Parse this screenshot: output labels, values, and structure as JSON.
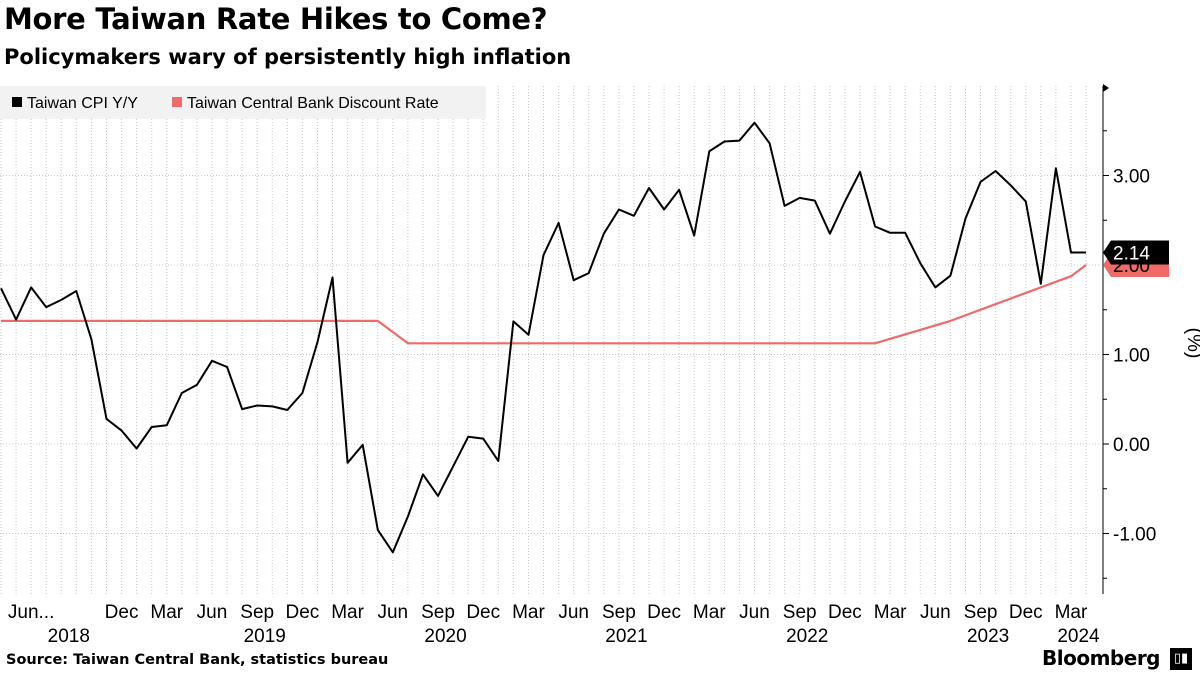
{
  "header": {
    "title": "More Taiwan Rate Hikes to Come?",
    "subtitle": "Policymakers wary of persistently high inflation"
  },
  "footer": {
    "source": "Source: Taiwan Central Bank, statistics bureau",
    "brand": "Bloomberg",
    "brand_icon": "bloomberg-terminal-icon"
  },
  "chart_data": {
    "type": "line",
    "title": "More Taiwan Rate Hikes to Come?",
    "subtitle": "Policymakers wary of persistently high inflation",
    "ylabel": "(%)",
    "ylim": [
      -1.6,
      4.0
    ],
    "yticks": [
      -1.0,
      0.0,
      1.0,
      2.0,
      3.0
    ],
    "ytick_labels": [
      "-1.00",
      "0.00",
      "1.00",
      "2.00",
      "3.00"
    ],
    "x_start": "2018-04",
    "x_months_range": [
      0,
      73
    ],
    "grid": "vertical dotted",
    "legend_position": "top-left",
    "x_ticks": [
      {
        "m": 2,
        "label": "Jun..."
      },
      {
        "m": 8,
        "label": "Dec"
      },
      {
        "m": 11,
        "label": "Mar"
      },
      {
        "m": 14,
        "label": "Jun"
      },
      {
        "m": 17,
        "label": "Sep"
      },
      {
        "m": 20,
        "label": "Dec"
      },
      {
        "m": 23,
        "label": "Mar"
      },
      {
        "m": 26,
        "label": "Jun"
      },
      {
        "m": 29,
        "label": "Sep"
      },
      {
        "m": 32,
        "label": "Dec"
      },
      {
        "m": 35,
        "label": "Mar"
      },
      {
        "m": 38,
        "label": "Jun"
      },
      {
        "m": 41,
        "label": "Sep"
      },
      {
        "m": 44,
        "label": "Dec"
      },
      {
        "m": 47,
        "label": "Mar"
      },
      {
        "m": 50,
        "label": "Jun"
      },
      {
        "m": 53,
        "label": "Sep"
      },
      {
        "m": 56,
        "label": "Dec"
      },
      {
        "m": 59,
        "label": "Mar"
      },
      {
        "m": 62,
        "label": "Jun"
      },
      {
        "m": 65,
        "label": "Sep"
      },
      {
        "m": 68,
        "label": "Dec"
      },
      {
        "m": 71,
        "label": "Mar"
      }
    ],
    "year_labels": [
      {
        "m": 4.5,
        "label": "2018"
      },
      {
        "m": 17.5,
        "label": "2019"
      },
      {
        "m": 29.5,
        "label": "2020"
      },
      {
        "m": 41.5,
        "label": "2021"
      },
      {
        "m": 53.5,
        "label": "2022"
      },
      {
        "m": 65.5,
        "label": "2023"
      },
      {
        "m": 71.5,
        "label": "2024"
      }
    ],
    "series": [
      {
        "name": "Taiwan CPI Y/Y",
        "color": "#000000",
        "last_label": "2.14",
        "x": [
          0,
          1,
          2,
          3,
          4,
          5,
          6,
          7,
          8,
          9,
          10,
          11,
          12,
          13,
          14,
          15,
          16,
          17,
          18,
          19,
          20,
          21,
          22,
          23,
          24,
          25,
          26,
          27,
          28,
          29,
          30,
          31,
          32,
          33,
          34,
          35,
          36,
          37,
          38,
          39,
          40,
          41,
          42,
          43,
          44,
          45,
          46,
          47,
          48,
          49,
          50,
          51,
          52,
          53,
          54,
          55,
          56,
          57,
          58,
          59,
          60,
          61,
          62,
          63,
          64,
          65,
          66,
          67,
          68,
          69,
          70,
          71,
          72
        ],
        "values": [
          1.74,
          1.39,
          1.75,
          1.53,
          1.61,
          1.71,
          1.17,
          0.28,
          0.15,
          -0.05,
          0.19,
          0.21,
          0.57,
          0.66,
          0.93,
          0.86,
          0.39,
          0.43,
          0.42,
          0.38,
          0.57,
          1.14,
          1.86,
          -0.21,
          -0.01,
          -0.96,
          -1.21,
          -0.81,
          -0.34,
          -0.58,
          -0.25,
          0.08,
          0.06,
          -0.19,
          1.37,
          1.22,
          2.11,
          2.47,
          1.83,
          1.91,
          2.35,
          2.62,
          2.55,
          2.86,
          2.62,
          2.84,
          2.33,
          3.27,
          3.38,
          3.39,
          3.59,
          3.36,
          2.66,
          2.75,
          2.72,
          2.35,
          2.71,
          3.04,
          2.43,
          2.36,
          2.36,
          2.02,
          1.75,
          1.88,
          2.52,
          2.93,
          3.05,
          2.89,
          2.71,
          1.79,
          3.08,
          2.14,
          2.14
        ]
      },
      {
        "name": "Taiwan Central Bank Discount Rate",
        "color": "#f06a6a",
        "last_label": "2.00",
        "x": [
          0,
          25,
          27,
          58,
          63,
          71,
          72
        ],
        "values": [
          1.375,
          1.375,
          1.125,
          1.125,
          1.375,
          1.875,
          2.0
        ]
      }
    ]
  }
}
